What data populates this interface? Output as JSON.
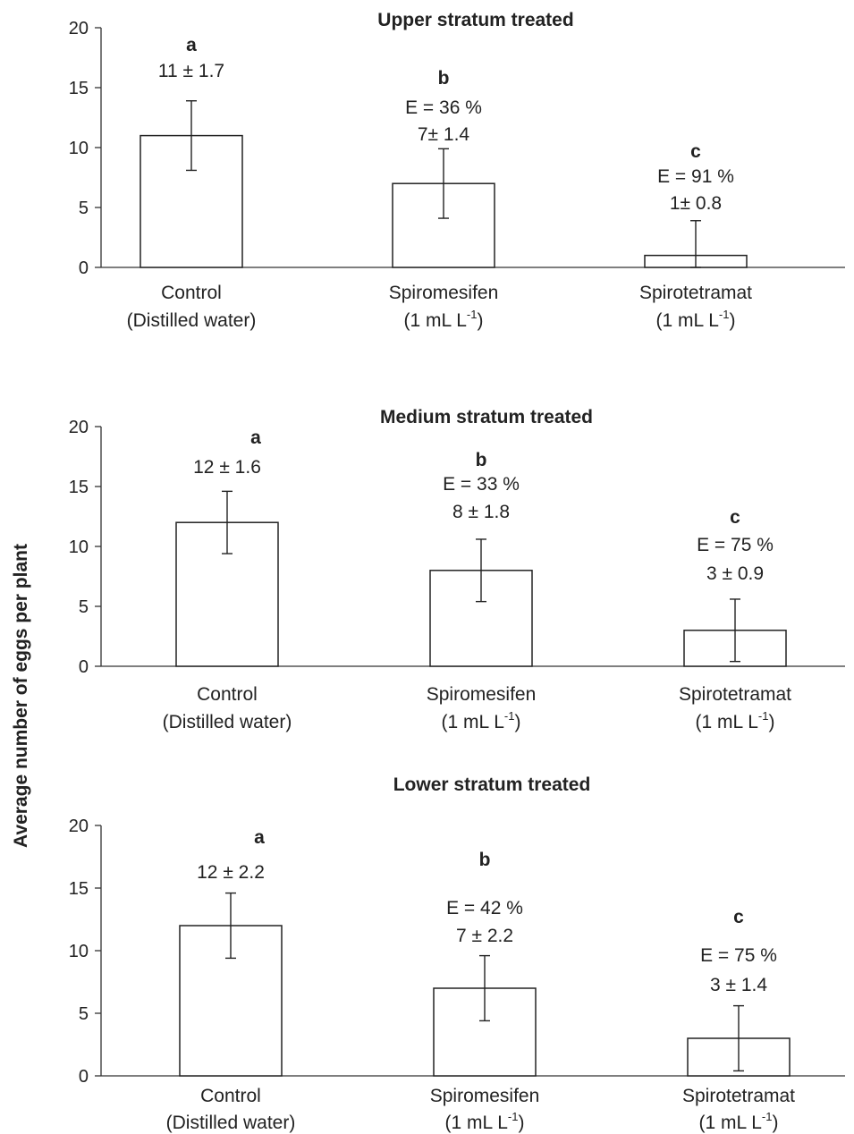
{
  "ylabel": "Average number of eggs per plant",
  "chart_data": [
    {
      "type": "bar",
      "title": "Upper stratum treated",
      "categories": [
        {
          "line1": "Control",
          "line2": "(Distilled water)"
        },
        {
          "line1": "Spiromesifen",
          "line2_pre": "(1 mL L",
          "line2_sup": "-1",
          "line2_post": ")"
        },
        {
          "line1": "Spirotetramat",
          "line2_pre": "(1 mL L",
          "line2_sup": "-1",
          "line2_post": ")"
        }
      ],
      "values": [
        11,
        7,
        1
      ],
      "errors": [
        2.9,
        2.9,
        2.9
      ],
      "letters": [
        "a",
        "b",
        "c"
      ],
      "efficacy": [
        "",
        "E = 36 %",
        "E = 91 %"
      ],
      "mean_sd": [
        "11 ± 1.7",
        "7± 1.4",
        "1± 0.8"
      ],
      "ylim": [
        0,
        20
      ],
      "yticks": [
        0,
        5,
        10,
        15,
        20
      ]
    },
    {
      "type": "bar",
      "title": "Medium stratum treated",
      "categories": [
        {
          "line1": "Control",
          "line2": "(Distilled water)"
        },
        {
          "line1": "Spiromesifen",
          "line2_pre": "(1 mL L",
          "line2_sup": "-1",
          "line2_post": ")"
        },
        {
          "line1": "Spirotetramat",
          "line2_pre": "(1 mL L",
          "line2_sup": "-1",
          "line2_post": ")"
        }
      ],
      "values": [
        12,
        8,
        3
      ],
      "errors": [
        2.6,
        2.6,
        2.6
      ],
      "letters": [
        "a",
        "b",
        "c"
      ],
      "efficacy": [
        "",
        "E = 33 %",
        "E = 75 %"
      ],
      "mean_sd": [
        "12 ± 1.6",
        "8 ± 1.8",
        "3 ± 0.9"
      ],
      "ylim": [
        0,
        20
      ],
      "yticks": [
        0,
        5,
        10,
        15,
        20
      ]
    },
    {
      "type": "bar",
      "title": "Lower stratum treated",
      "categories": [
        {
          "line1": "Control",
          "line2": "(Distilled water)"
        },
        {
          "line1": "Spiromesifen",
          "line2_pre": "(1 mL L",
          "line2_sup": "-1",
          "line2_post": ")"
        },
        {
          "line1": "Spirotetramat",
          "line2_pre": "(1 mL L",
          "line2_sup": "-1",
          "line2_post": ")"
        }
      ],
      "values": [
        12,
        7,
        3
      ],
      "errors": [
        2.6,
        2.6,
        2.6
      ],
      "letters": [
        "a",
        "b",
        "c"
      ],
      "efficacy": [
        "",
        "E = 42 %",
        "E = 75 %"
      ],
      "mean_sd": [
        "12 ± 2.2",
        "7 ± 2.2",
        "3 ± 1.4"
      ],
      "ylim": [
        0,
        20
      ],
      "yticks": [
        0,
        5,
        10,
        15,
        20
      ]
    }
  ]
}
